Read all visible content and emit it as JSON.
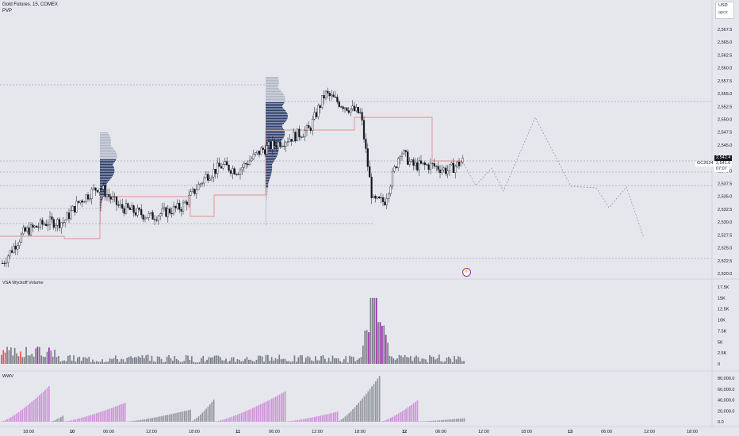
{
  "header": {
    "symbol_title": "Gold Futures, 15, COMEX",
    "indicator_label": "PVP"
  },
  "currency_menu": {
    "currency": "USD",
    "unit": "apoz"
  },
  "price_scale": {
    "labels": [
      "2,567.5",
      "2,565.0",
      "2,562.5",
      "2,560.0",
      "2,557.5",
      "2,555.0",
      "2,552.5",
      "2,550.0",
      "2,547.5",
      "2,545.0",
      "2,542.5",
      "2,540.0",
      "2,537.5",
      "2,535.0",
      "2,532.5",
      "2,530.0",
      "2,527.5",
      "2,525.0",
      "2,522.5",
      "2,520.0"
    ],
    "values": [
      2567.5,
      2565.0,
      2562.5,
      2560.0,
      2557.5,
      2555.0,
      2552.5,
      2550.0,
      2547.5,
      2545.0,
      2542.5,
      2540.0,
      2537.5,
      2535.0,
      2532.5,
      2530.0,
      2527.5,
      2525.0,
      2522.5,
      2520.0
    ],
    "last_price": "2,542.4",
    "tag_symbol": "GC2024",
    "tag_price": "2,541.6",
    "tag_countdown": "07:07"
  },
  "vsa_pane": {
    "title": "VSA Wyckoff Volume",
    "axis_labels": [
      "17.5K",
      "15K",
      "12.5K",
      "10K",
      "7.5K",
      "5K",
      "2.5K",
      "0"
    ],
    "axis_values": [
      17500,
      15000,
      12500,
      10000,
      7500,
      5000,
      2500,
      0
    ]
  },
  "wwv_pane": {
    "title": "WWV",
    "axis_labels": [
      "80,000.0",
      "60,000.0",
      "40,000.0",
      "20,000.0",
      "0.0"
    ],
    "axis_values": [
      80000,
      60000,
      40000,
      20000,
      0
    ]
  },
  "time_axis": {
    "labels": [
      "18:00",
      "10",
      "06:00",
      "12:00",
      "18:00",
      "11",
      "06:00",
      "12:00",
      "18:00",
      "12",
      "06:00",
      "12:00",
      "18:00",
      "13",
      "06:00",
      "12:00",
      "18:00"
    ],
    "bold": [
      false,
      true,
      false,
      false,
      false,
      true,
      false,
      false,
      false,
      true,
      false,
      false,
      false,
      true,
      false,
      false,
      false
    ]
  },
  "colors": {
    "background": "#e5e7ec",
    "candle": "#131722",
    "volume_purple": "#9c27b0",
    "volume_red": "#ef5350",
    "volume_gray": "#7b7e87",
    "wwv_purple": "#ce93d8",
    "wwv_gray": "#9598a1",
    "profile_dark": "#2c3e6b",
    "profile_light": "#b2b8c8",
    "poc_line": "#e57373",
    "last_price_tag": "#131722"
  },
  "icons": {
    "alert": "alert-bolt-icon"
  }
}
